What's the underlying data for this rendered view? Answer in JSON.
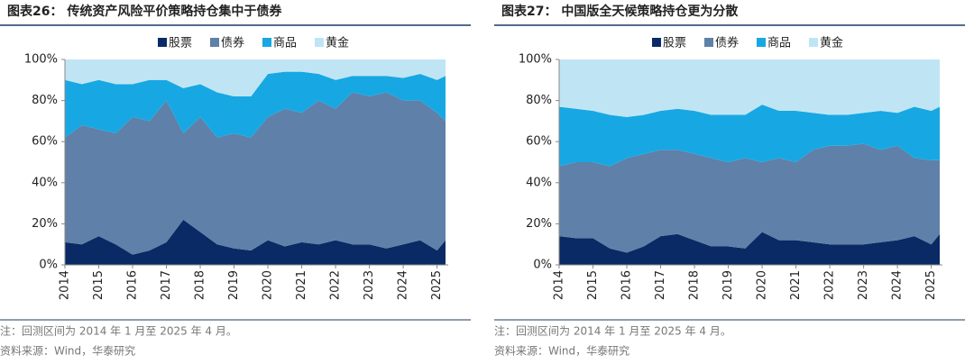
{
  "chart_data": [
    {
      "type": "stacked_area",
      "title": "图表26：  传统资产风险平价策略持仓集中于债券",
      "x": [
        2014.0,
        2014.5,
        2015.0,
        2015.5,
        2016.0,
        2016.5,
        2017.0,
        2017.5,
        2018.0,
        2018.5,
        2019.0,
        2019.5,
        2020.0,
        2020.5,
        2021.0,
        2021.5,
        2022.0,
        2022.5,
        2023.0,
        2023.5,
        2024.0,
        2024.5,
        2025.0,
        2025.25
      ],
      "series": [
        {
          "name": "股票",
          "color": "#0a2a66",
          "values": [
            11,
            10,
            14,
            10,
            5,
            7,
            11,
            22,
            16,
            10,
            8,
            7,
            12,
            9,
            11,
            10,
            12,
            10,
            10,
            8,
            10,
            12,
            7,
            12
          ]
        },
        {
          "name": "债券",
          "color": "#5f80a8",
          "values": [
            51,
            58,
            52,
            54,
            67,
            63,
            69,
            42,
            56,
            52,
            56,
            55,
            60,
            67,
            63,
            70,
            64,
            74,
            72,
            76,
            70,
            68,
            67,
            58
          ]
        },
        {
          "name": "商品",
          "color": "#17a8e3",
          "values": [
            28,
            20,
            24,
            24,
            16,
            20,
            10,
            22,
            16,
            22,
            18,
            20,
            21,
            18,
            20,
            13,
            14,
            8,
            10,
            8,
            11,
            13,
            16,
            22
          ]
        },
        {
          "name": "黄金",
          "color": "#bfe5f5",
          "values": [
            10,
            12,
            10,
            12,
            12,
            10,
            10,
            14,
            12,
            16,
            18,
            18,
            7,
            6,
            6,
            7,
            10,
            8,
            8,
            8,
            9,
            7,
            10,
            8
          ]
        }
      ],
      "xlim": [
        2014,
        2025.33
      ],
      "xticks": [
        2014,
        2015,
        2016,
        2017,
        2018,
        2019,
        2020,
        2021,
        2022,
        2023,
        2024,
        2025
      ],
      "ylim": [
        0,
        100
      ],
      "yticks": [
        {
          "value": 0,
          "label": "0%"
        },
        {
          "value": 20,
          "label": "20%"
        },
        {
          "value": 40,
          "label": "40%"
        },
        {
          "value": 60,
          "label": "60%"
        },
        {
          "value": 80,
          "label": "80%"
        },
        {
          "value": 100,
          "label": "100%"
        }
      ],
      "legend": "top",
      "note": "注：回测区间为 2014 年 1 月至 2025 年 4 月。",
      "source": "资料来源：Wind，华泰研究"
    },
    {
      "type": "stacked_area",
      "title": "图表27：  中国版全天候策略持仓更为分散",
      "x": [
        2014.0,
        2014.5,
        2015.0,
        2015.5,
        2016.0,
        2016.5,
        2017.0,
        2017.5,
        2018.0,
        2018.5,
        2019.0,
        2019.5,
        2020.0,
        2020.5,
        2021.0,
        2021.5,
        2022.0,
        2022.5,
        2023.0,
        2023.5,
        2024.0,
        2024.5,
        2025.0,
        2025.25
      ],
      "series": [
        {
          "name": "股票",
          "color": "#0a2a66",
          "values": [
            14,
            13,
            13,
            8,
            6,
            9,
            14,
            15,
            12,
            9,
            9,
            8,
            16,
            12,
            12,
            11,
            10,
            10,
            10,
            11,
            12,
            14,
            10,
            15
          ]
        },
        {
          "name": "债券",
          "color": "#5f80a8",
          "values": [
            34,
            37,
            37,
            40,
            46,
            45,
            42,
            41,
            42,
            43,
            41,
            44,
            34,
            40,
            38,
            45,
            48,
            48,
            49,
            45,
            46,
            38,
            41,
            36
          ]
        },
        {
          "name": "商品",
          "color": "#17a8e3",
          "values": [
            29,
            26,
            25,
            25,
            20,
            19,
            19,
            20,
            21,
            21,
            23,
            21,
            28,
            23,
            25,
            18,
            15,
            15,
            15,
            19,
            16,
            25,
            24,
            26
          ]
        },
        {
          "name": "黄金",
          "color": "#bfe5f5",
          "values": [
            23,
            24,
            25,
            27,
            28,
            27,
            25,
            24,
            25,
            27,
            27,
            27,
            22,
            25,
            25,
            26,
            27,
            27,
            26,
            25,
            26,
            23,
            25,
            23
          ]
        }
      ],
      "xlim": [
        2014,
        2025.33
      ],
      "xticks": [
        2014,
        2015,
        2016,
        2017,
        2018,
        2019,
        2020,
        2021,
        2022,
        2023,
        2024,
        2025
      ],
      "ylim": [
        0,
        100
      ],
      "yticks": [
        {
          "value": 0,
          "label": "0%"
        },
        {
          "value": 20,
          "label": "20%"
        },
        {
          "value": 40,
          "label": "40%"
        },
        {
          "value": 60,
          "label": "60%"
        },
        {
          "value": 80,
          "label": "80%"
        },
        {
          "value": 100,
          "label": "100%"
        }
      ],
      "legend": "top",
      "note": "注：回测区间为 2014 年 1 月至 2025 年 4 月。",
      "source": "资料来源：Wind，华泰研究"
    }
  ]
}
